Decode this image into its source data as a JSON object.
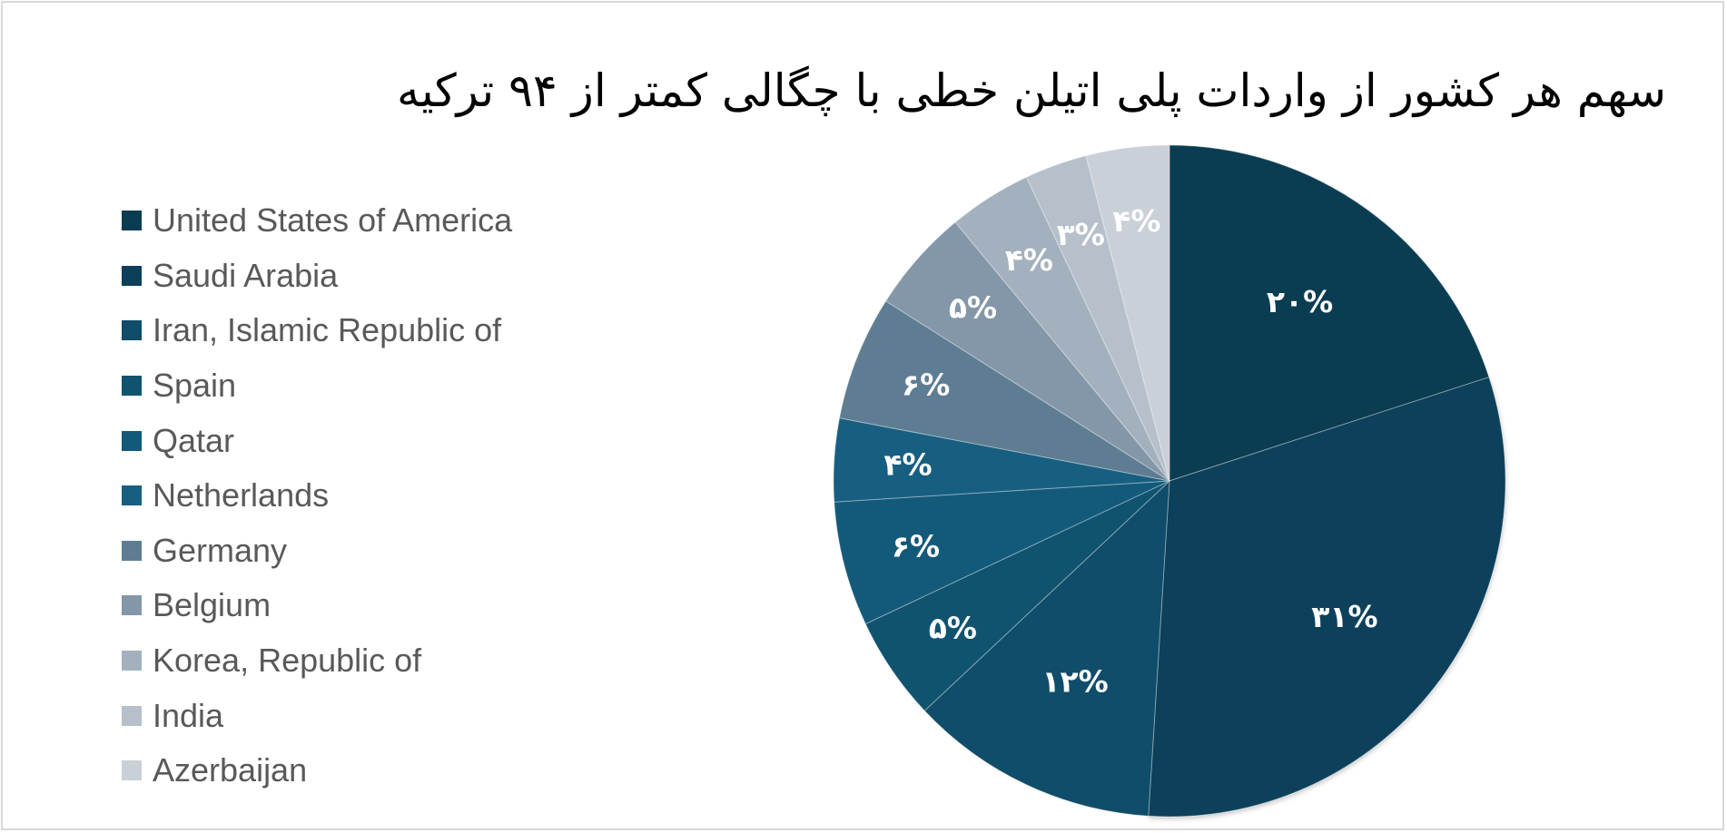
{
  "chart_data": {
    "type": "pie",
    "title": "سهم هر کشور از واردات پلی اتیلن خطی با چگالی کمتر از ۹۴ ترکیه",
    "legend_position": "left",
    "series": [
      {
        "name": "United States of America",
        "value": 20,
        "label": "۲۰%",
        "color": "#0b3d52"
      },
      {
        "name": "Saudi Arabia",
        "value": 31,
        "label": "۳۱%",
        "color": "#0c405a"
      },
      {
        "name": "Iran, Islamic Republic of",
        "value": 12,
        "label": "۱۲%",
        "color": "#0f4d6a"
      },
      {
        "name": "Spain",
        "value": 5,
        "label": "۵%",
        "color": "#10536f"
      },
      {
        "name": "Qatar",
        "value": 6,
        "label": "۶%",
        "color": "#135a7a"
      },
      {
        "name": "Netherlands",
        "value": 4,
        "label": "۴%",
        "color": "#175f81"
      },
      {
        "name": "Germany",
        "value": 6,
        "label": "۶%",
        "color": "#5e7d93"
      },
      {
        "name": "Belgium",
        "value": 5,
        "label": "۵%",
        "color": "#8397a9"
      },
      {
        "name": "Korea, Republic of",
        "value": 4,
        "label": "۴%",
        "color": "#a3b1be"
      },
      {
        "name": "India",
        "value": 3,
        "label": "۳%",
        "color": "#b6c0ca"
      },
      {
        "name": "Azerbaijan",
        "value": 4,
        "label": "۴%",
        "color": "#c9d0d8"
      }
    ]
  }
}
